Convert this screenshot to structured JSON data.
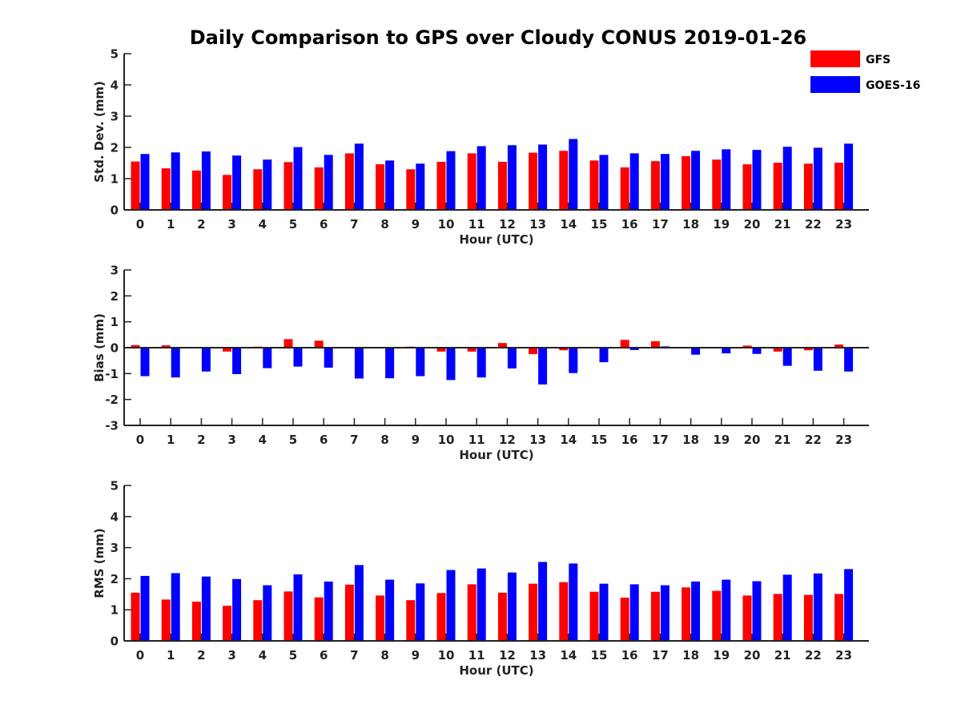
{
  "title": "Daily Comparison to GPS over Cloudy CONUS 2019-01-26",
  "legend": {
    "placement": "top-right",
    "entries": [
      {
        "name": "GFS",
        "color": "#ff0000"
      },
      {
        "name": "GOES-16",
        "color": "#0000ff"
      }
    ]
  },
  "chart_data": [
    {
      "type": "bar",
      "title": "",
      "xlabel": "Hour (UTC)",
      "ylabel": "Std. Dev. (mm)",
      "ylim": [
        0,
        5
      ],
      "yticks": [
        "0",
        "1",
        "2",
        "3",
        "4",
        "5"
      ],
      "categories": [
        "0",
        "1",
        "2",
        "3",
        "4",
        "5",
        "6",
        "7",
        "8",
        "9",
        "10",
        "11",
        "12",
        "13",
        "14",
        "15",
        "16",
        "17",
        "18",
        "19",
        "20",
        "21",
        "22",
        "23"
      ],
      "grid": false,
      "series": [
        {
          "name": "GFS",
          "color": "#ff0000",
          "values": [
            1.55,
            1.33,
            1.26,
            1.12,
            1.3,
            1.53,
            1.36,
            1.81,
            1.46,
            1.3,
            1.54,
            1.81,
            1.54,
            1.83,
            1.89,
            1.58,
            1.36,
            1.56,
            1.72,
            1.61,
            1.46,
            1.51,
            1.48,
            1.51
          ]
        },
        {
          "name": "GOES-16",
          "color": "#0000ff",
          "values": [
            1.79,
            1.84,
            1.87,
            1.74,
            1.61,
            2.01,
            1.76,
            2.12,
            1.58,
            1.48,
            1.88,
            2.04,
            2.07,
            2.09,
            2.27,
            1.76,
            1.81,
            1.79,
            1.89,
            1.94,
            1.92,
            2.02,
            1.99,
            2.12
          ]
        }
      ]
    },
    {
      "type": "bar",
      "title": "",
      "xlabel": "Hour (UTC)",
      "ylabel": "Bias (mm)",
      "ylim": [
        -3,
        3
      ],
      "yticks": [
        "-3",
        "-2",
        "-1",
        "0",
        "1",
        "2",
        "3"
      ],
      "categories": [
        "0",
        "1",
        "2",
        "3",
        "4",
        "5",
        "6",
        "7",
        "8",
        "9",
        "10",
        "11",
        "12",
        "13",
        "14",
        "15",
        "16",
        "17",
        "18",
        "19",
        "20",
        "21",
        "22",
        "23"
      ],
      "grid": false,
      "series": [
        {
          "name": "GFS",
          "color": "#ff0000",
          "values": [
            0.1,
            0.09,
            -0.03,
            -0.15,
            0.04,
            0.33,
            0.27,
            0.0,
            0.0,
            0.04,
            -0.15,
            -0.15,
            0.18,
            -0.25,
            -0.1,
            0.0,
            0.3,
            0.25,
            0.0,
            0.0,
            0.08,
            -0.15,
            -0.1,
            0.12
          ]
        },
        {
          "name": "GOES-16",
          "color": "#0000ff",
          "values": [
            -1.1,
            -1.15,
            -0.92,
            -1.02,
            -0.79,
            -0.73,
            -0.77,
            -1.19,
            -1.18,
            -1.1,
            -1.25,
            -1.15,
            -0.8,
            -1.42,
            -0.98,
            -0.56,
            -0.09,
            0.05,
            -0.27,
            -0.22,
            -0.24,
            -0.7,
            -0.89,
            -0.92
          ]
        }
      ]
    },
    {
      "type": "bar",
      "title": "",
      "xlabel": "Hour (UTC)",
      "ylabel": "RMS (mm)",
      "ylim": [
        0,
        5
      ],
      "yticks": [
        "0",
        "1",
        "2",
        "3",
        "4",
        "5"
      ],
      "categories": [
        "0",
        "1",
        "2",
        "3",
        "4",
        "5",
        "6",
        "7",
        "8",
        "9",
        "10",
        "11",
        "12",
        "13",
        "14",
        "15",
        "16",
        "17",
        "18",
        "19",
        "20",
        "21",
        "22",
        "23"
      ],
      "grid": false,
      "series": [
        {
          "name": "GFS",
          "color": "#ff0000",
          "values": [
            1.55,
            1.33,
            1.26,
            1.13,
            1.31,
            1.59,
            1.4,
            1.81,
            1.46,
            1.31,
            1.54,
            1.82,
            1.55,
            1.84,
            1.89,
            1.58,
            1.39,
            1.58,
            1.72,
            1.61,
            1.46,
            1.51,
            1.48,
            1.51
          ]
        },
        {
          "name": "GOES-16",
          "color": "#0000ff",
          "values": [
            2.09,
            2.18,
            2.07,
            1.99,
            1.79,
            2.14,
            1.91,
            2.44,
            1.97,
            1.85,
            2.28,
            2.33,
            2.2,
            2.54,
            2.49,
            1.84,
            1.82,
            1.79,
            1.91,
            1.97,
            1.92,
            2.13,
            2.17,
            2.31
          ]
        }
      ]
    }
  ]
}
